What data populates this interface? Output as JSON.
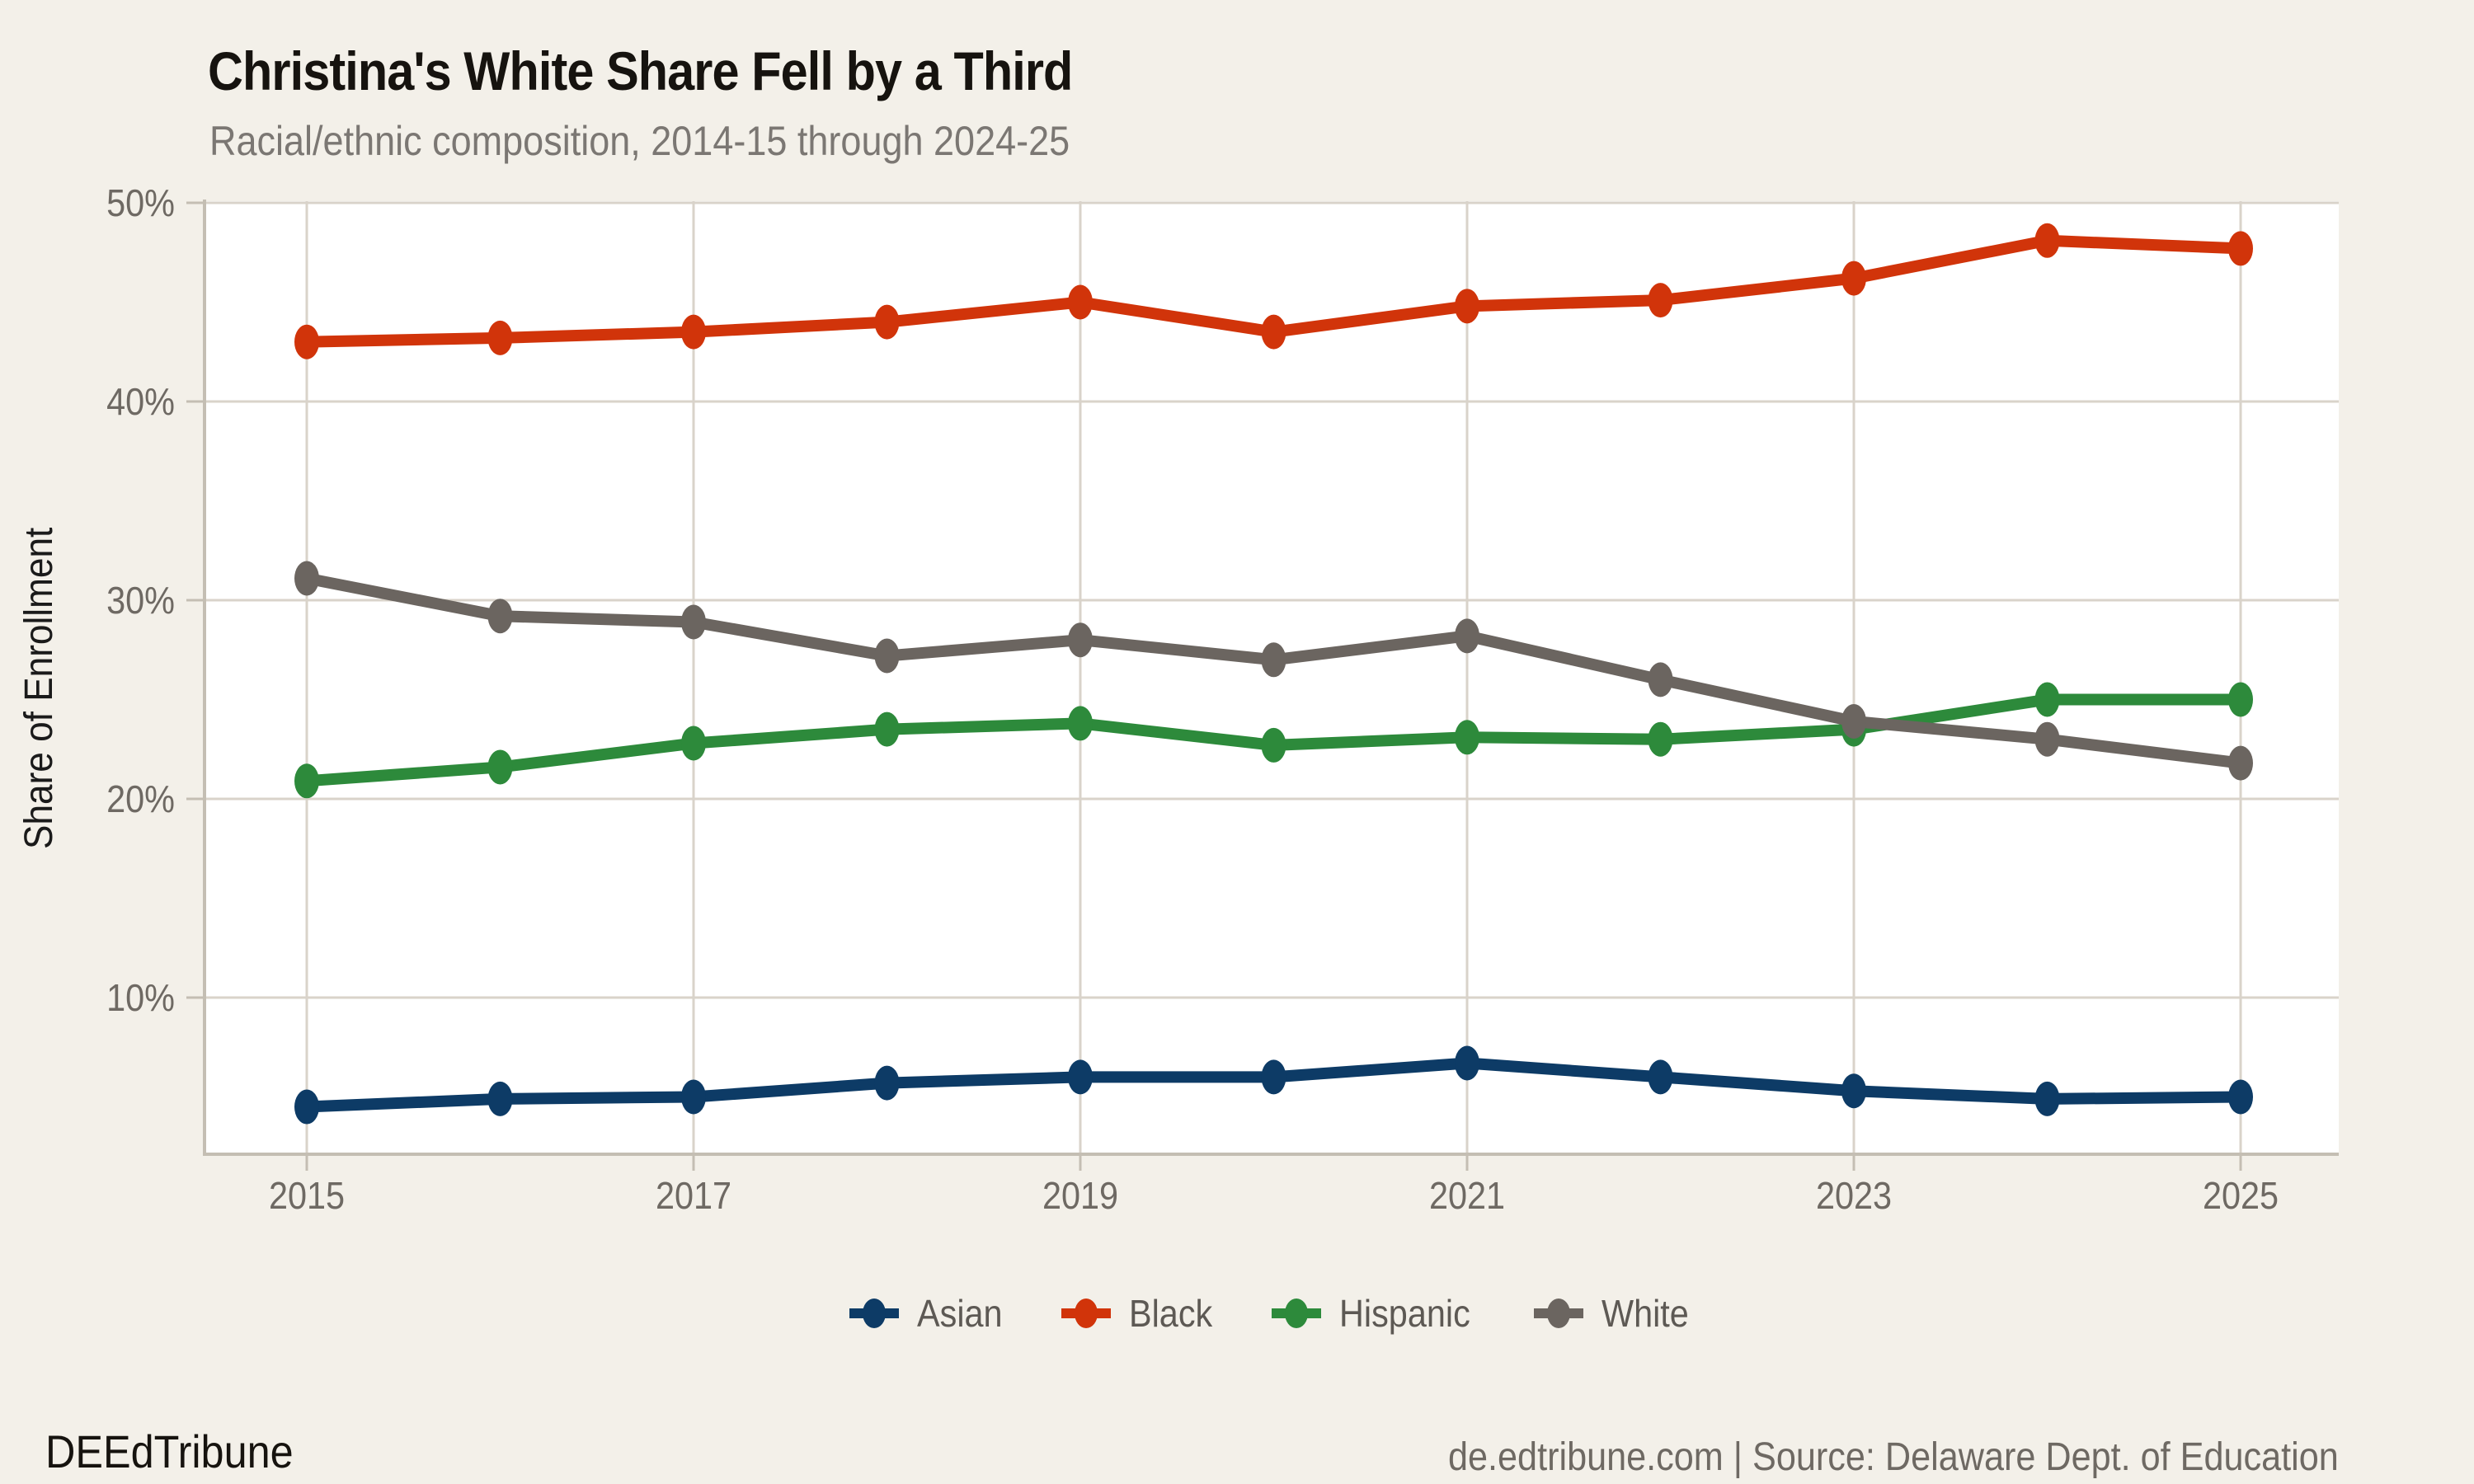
{
  "footer": {
    "brand": "DEEdTribune",
    "source": "de.edtribune.com | Source: Delaware Dept. of Education"
  },
  "colors": {
    "background": "#f3f0e9",
    "panel": "#ffffff",
    "grid": "#d9d3ca",
    "axis": "#c4beb3",
    "tick_text": "#6e6963",
    "title_text": "#16130f",
    "subtitle_text": "#7b7773",
    "legend_text": "#5d5954",
    "asian": "#0d3b66",
    "black": "#d1340a",
    "hispanic": "#2d8a3b",
    "white": "#6b6560"
  },
  "chart_data": {
    "type": "line",
    "title": "Christina's White Share Fell by a Third",
    "subtitle": "Racial/ethnic composition, 2014-15 through 2024-25",
    "xlabel": "",
    "ylabel": "Share of Enrollment",
    "x": [
      2015,
      2016,
      2017,
      2018,
      2019,
      2020,
      2021,
      2022,
      2023,
      2024,
      2025
    ],
    "x_tick_labels": [
      "2015",
      "2017",
      "2019",
      "2021",
      "2023",
      "2025"
    ],
    "y_ticks": [
      {
        "value": 10,
        "label": "10%"
      },
      {
        "value": 20,
        "label": "20%"
      },
      {
        "value": 30,
        "label": "30%"
      },
      {
        "value": 40,
        "label": "40%"
      },
      {
        "value": 50,
        "label": "50%"
      }
    ],
    "ylim": [
      2.1,
      50.1
    ],
    "grid": true,
    "legend_position": "bottom",
    "series": [
      {
        "name": "Asian",
        "color": "#0d3b66",
        "values": [
          4.5,
          4.9,
          5.0,
          5.7,
          6.0,
          6.0,
          6.7,
          6.0,
          5.3,
          4.9,
          5.0
        ]
      },
      {
        "name": "Black",
        "color": "#d1340a",
        "values": [
          43.0,
          43.2,
          43.5,
          44.0,
          45.0,
          43.5,
          44.8,
          45.1,
          46.2,
          48.1,
          47.7
        ]
      },
      {
        "name": "Hispanic",
        "color": "#2d8a3b",
        "values": [
          20.9,
          21.6,
          22.8,
          23.5,
          23.8,
          22.7,
          23.1,
          23.0,
          23.5,
          25.0,
          25.0
        ]
      },
      {
        "name": "White",
        "color": "#6b6560",
        "values": [
          31.1,
          29.2,
          28.9,
          27.2,
          28.0,
          27.0,
          28.2,
          26.0,
          23.9,
          23.0,
          21.8
        ]
      }
    ]
  }
}
